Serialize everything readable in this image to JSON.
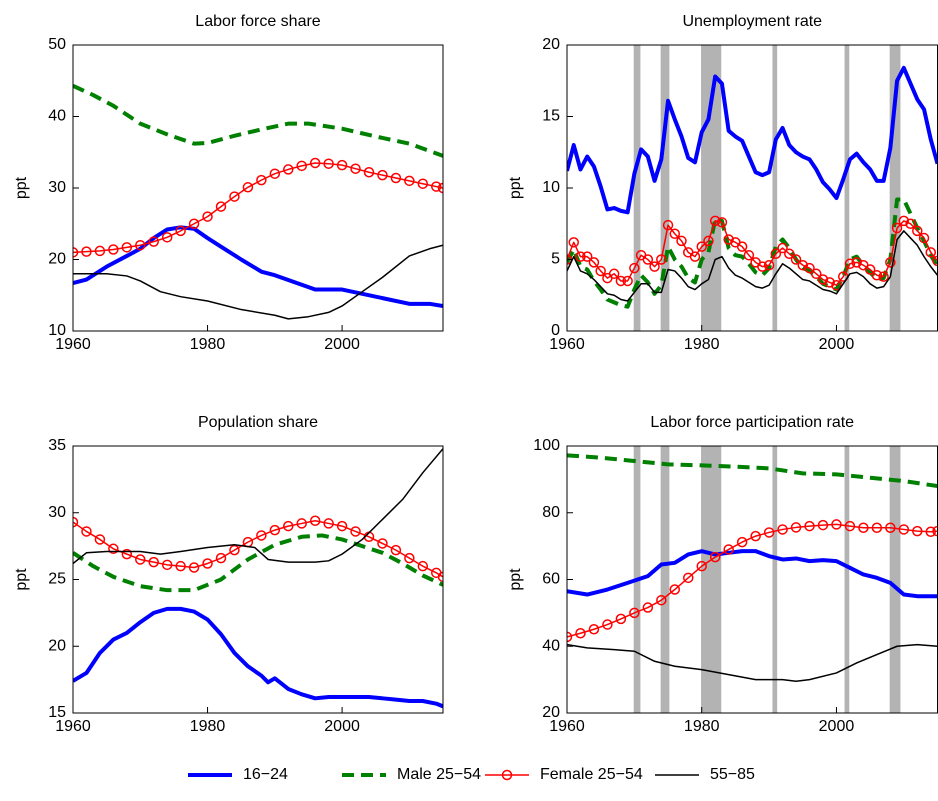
{
  "chart_data": [
    {
      "type": "line",
      "title": "Labor force share",
      "ylabel": "ppt",
      "xlim": [
        1960,
        2015
      ],
      "xticks": [
        1960,
        1980,
        2000
      ],
      "ylim": [
        10,
        50
      ],
      "yticks": [
        10,
        20,
        30,
        40,
        50
      ],
      "legend": "bottom",
      "series": [
        {
          "name": "16−24",
          "color": "#0000ff",
          "line_style": "solid",
          "line_width": 4,
          "x": [
            1960,
            1962,
            1965,
            1968,
            1970,
            1972,
            1974,
            1976,
            1978,
            1980,
            1982,
            1985,
            1988,
            1990,
            1993,
            1996,
            2000,
            2003,
            2006,
            2010,
            2013,
            2015
          ],
          "values": [
            16.7,
            17.2,
            19,
            20.5,
            21.5,
            23,
            24.2,
            24.5,
            24.3,
            23,
            21.8,
            20,
            18.3,
            17.8,
            16.8,
            15.8,
            15.8,
            15.2,
            14.6,
            13.8,
            13.8,
            13.5
          ]
        },
        {
          "name": "Male 25−54",
          "color": "#008000",
          "line_style": "dashed",
          "line_width": 4,
          "x": [
            1960,
            1963,
            1966,
            1970,
            1974,
            1978,
            1980,
            1984,
            1988,
            1992,
            1995,
            2000,
            2005,
            2010,
            2015
          ],
          "values": [
            44.3,
            43,
            41.5,
            39,
            37.5,
            36.2,
            36.3,
            37.3,
            38.2,
            39,
            39,
            38.3,
            37.2,
            36.2,
            34.5
          ]
        },
        {
          "name": "Female 25−54",
          "color": "#ff0000",
          "line_style": "solid",
          "line_width": 1.5,
          "marker": "circle",
          "x": [
            1960,
            1962,
            1964,
            1966,
            1968,
            1970,
            1972,
            1974,
            1976,
            1978,
            1980,
            1982,
            1984,
            1986,
            1988,
            1990,
            1992,
            1994,
            1996,
            1998,
            2000,
            2002,
            2004,
            2006,
            2008,
            2010,
            2012,
            2014,
            2015
          ],
          "values": [
            21,
            21.1,
            21.2,
            21.4,
            21.7,
            22,
            22.5,
            23.1,
            24,
            25,
            26,
            27.4,
            28.8,
            30.1,
            31.1,
            32,
            32.6,
            33.1,
            33.5,
            33.4,
            33.2,
            32.7,
            32.2,
            31.8,
            31.4,
            31,
            30.6,
            30.2,
            30
          ]
        },
        {
          "name": "55−85",
          "color": "#000000",
          "line_style": "solid",
          "line_width": 1.5,
          "x": [
            1960,
            1965,
            1968,
            1970,
            1973,
            1976,
            1980,
            1985,
            1990,
            1992,
            1995,
            1998,
            2000,
            2003,
            2006,
            2010,
            2013,
            2015
          ],
          "values": [
            18,
            18,
            17.7,
            17,
            15.5,
            14.8,
            14.2,
            13,
            12.2,
            11.7,
            12,
            12.6,
            13.5,
            15.5,
            17.5,
            20.5,
            21.5,
            22
          ]
        }
      ]
    },
    {
      "type": "line",
      "title": "Unemployment rate",
      "ylabel": "ppt",
      "xlim": [
        1960,
        2015
      ],
      "xticks": [
        1960,
        1980,
        2000
      ],
      "ylim": [
        0,
        20
      ],
      "yticks": [
        0,
        5,
        10,
        15,
        20
      ],
      "recessions": [
        [
          1969.9,
          1970.9
        ],
        [
          1973.9,
          1975.2
        ],
        [
          1979.9,
          1982.9
        ],
        [
          1990.5,
          1991.2
        ],
        [
          2001.2,
          2001.9
        ],
        [
          2007.9,
          2009.5
        ]
      ],
      "recession_color": "#b3b3b3",
      "x": [
        1960,
        1961,
        1962,
        1963,
        1964,
        1965,
        1966,
        1967,
        1968,
        1969,
        1970,
        1971,
        1972,
        1973,
        1974,
        1975,
        1976,
        1977,
        1978,
        1979,
        1980,
        1981,
        1982,
        1983,
        1984,
        1985,
        1986,
        1987,
        1988,
        1989,
        1990,
        1991,
        1992,
        1993,
        1994,
        1995,
        1996,
        1997,
        1998,
        1999,
        2000,
        2001,
        2002,
        2003,
        2004,
        2005,
        2006,
        2007,
        2008,
        2009,
        2010,
        2011,
        2012,
        2013,
        2014,
        2015
      ],
      "series": [
        {
          "color": "#0000ff",
          "line_style": "solid",
          "line_width": 4,
          "values": [
            11.2,
            13,
            11.3,
            12.2,
            11.5,
            10.1,
            8.5,
            8.6,
            8.4,
            8.3,
            11,
            12.7,
            12.2,
            10.5,
            12,
            16.1,
            14.8,
            13.6,
            12.1,
            11.8,
            13.9,
            14.8,
            17.8,
            17.3,
            14,
            13.6,
            13.3,
            12.2,
            11.1,
            10.9,
            11.1,
            13.4,
            14.2,
            13,
            12.5,
            12.2,
            12,
            11.3,
            10.4,
            9.9,
            9.3,
            10.6,
            12,
            12.4,
            11.8,
            11.3,
            10.5,
            10.5,
            12.8,
            17.5,
            18.4,
            17.3,
            16.2,
            15.5,
            13.4,
            11.7
          ]
        },
        {
          "color": "#008000",
          "line_style": "dashed",
          "line_width": 4,
          "values": [
            4.8,
            5.7,
            4.5,
            4.3,
            3.5,
            2.9,
            2.2,
            2,
            1.8,
            1.7,
            2.9,
            3.9,
            3.4,
            2.6,
            3.2,
            5.9,
            5,
            4.5,
            3.7,
            3.4,
            5,
            5.5,
            7.8,
            7.7,
            5.8,
            5.3,
            5.2,
            4.7,
            4.1,
            3.9,
            4.4,
            5.9,
            6.4,
            5.8,
            5,
            4.4,
            4.2,
            3.8,
            3.3,
            3.1,
            2.9,
            3.8,
            5,
            5.2,
            4.6,
            4.1,
            3.6,
            3.7,
            5,
            9.2,
            9.2,
            8.2,
            7.2,
            6.3,
            5.3,
            4.5
          ]
        },
        {
          "color": "#ff0000",
          "line_style": "solid",
          "line_width": 1.5,
          "marker": "circle",
          "values": [
            5,
            6.2,
            5.2,
            5.2,
            4.8,
            4.2,
            3.7,
            4,
            3.5,
            3.5,
            4.4,
            5.3,
            5,
            4.5,
            5,
            7.4,
            6.8,
            6.3,
            5.5,
            5.2,
            5.9,
            6.3,
            7.7,
            7.6,
            6.4,
            6.2,
            5.9,
            5.3,
            4.8,
            4.5,
            4.6,
            5.4,
            5.8,
            5.4,
            5,
            4.6,
            4.4,
            4,
            3.6,
            3.4,
            3.2,
            3.8,
            4.7,
            4.8,
            4.6,
            4.3,
            3.9,
            3.8,
            4.8,
            7.2,
            7.7,
            7.5,
            7,
            6.5,
            5.5,
            4.9
          ]
        },
        {
          "color": "#000000",
          "line_style": "solid",
          "line_width": 1.5,
          "values": [
            4.2,
            5.2,
            4.2,
            4,
            3.6,
            3.1,
            2.6,
            2.5,
            2.2,
            2.1,
            2.7,
            3.3,
            3.3,
            2.7,
            2.7,
            4.3,
            4.2,
            3.7,
            3.1,
            2.9,
            3.3,
            3.6,
            5,
            5.2,
            4.4,
            3.9,
            3.7,
            3.4,
            3.1,
            3,
            3.2,
            4,
            4.7,
            4.4,
            4,
            3.6,
            3.5,
            3.2,
            2.9,
            2.8,
            2.6,
            3.3,
            4,
            4.1,
            3.8,
            3.3,
            3,
            3.1,
            3.8,
            6.4,
            7,
            6.5,
            6,
            5.2,
            4.5,
            3.9
          ]
        }
      ]
    },
    {
      "type": "line",
      "title": "Population share",
      "ylabel": "ppt",
      "xlim": [
        1960,
        2015
      ],
      "xticks": [
        1960,
        1980,
        2000
      ],
      "ylim": [
        15,
        35
      ],
      "yticks": [
        15,
        20,
        25,
        30,
        35
      ],
      "series": [
        {
          "color": "#0000ff",
          "line_style": "solid",
          "line_width": 4,
          "x": [
            1960,
            1962,
            1964,
            1966,
            1968,
            1970,
            1972,
            1974,
            1976,
            1978,
            1980,
            1982,
            1984,
            1986,
            1988,
            1989,
            1990,
            1992,
            1994,
            1996,
            1998,
            2000,
            2002,
            2004,
            2006,
            2008,
            2010,
            2012,
            2014,
            2015
          ],
          "values": [
            17.4,
            18,
            19.5,
            20.5,
            21,
            21.8,
            22.5,
            22.8,
            22.8,
            22.6,
            22,
            20.9,
            19.5,
            18.5,
            17.8,
            17.3,
            17.6,
            16.8,
            16.4,
            16.1,
            16.2,
            16.2,
            16.2,
            16.2,
            16.1,
            16,
            15.9,
            15.9,
            15.7,
            15.5
          ]
        },
        {
          "color": "#008000",
          "line_style": "dashed",
          "line_width": 4,
          "x": [
            1960,
            1963,
            1966,
            1970,
            1974,
            1978,
            1982,
            1986,
            1990,
            1994,
            1997,
            2000,
            2003,
            2006,
            2009,
            2012,
            2015
          ],
          "values": [
            27,
            26,
            25.2,
            24.5,
            24.2,
            24.2,
            25,
            26.5,
            27.6,
            28.2,
            28.3,
            28,
            27.5,
            27,
            26.2,
            25.3,
            24.6
          ]
        },
        {
          "color": "#ff0000",
          "line_style": "solid",
          "line_width": 1.5,
          "marker": "circle",
          "x": [
            1960,
            1962,
            1964,
            1966,
            1968,
            1970,
            1972,
            1974,
            1976,
            1978,
            1980,
            1982,
            1984,
            1986,
            1988,
            1990,
            1992,
            1994,
            1996,
            1998,
            2000,
            2002,
            2004,
            2006,
            2008,
            2010,
            2012,
            2014,
            2015
          ],
          "values": [
            29.3,
            28.6,
            28,
            27.3,
            26.9,
            26.5,
            26.3,
            26.1,
            26,
            25.9,
            26.2,
            26.6,
            27.2,
            27.8,
            28.3,
            28.7,
            29,
            29.2,
            29.4,
            29.2,
            29,
            28.6,
            28.2,
            27.7,
            27.2,
            26.6,
            26,
            25.5,
            25.2
          ]
        },
        {
          "color": "#000000",
          "line_style": "solid",
          "line_width": 1.5,
          "x": [
            1960,
            1962,
            1965,
            1970,
            1973,
            1976,
            1980,
            1984,
            1987,
            1989,
            1992,
            1996,
            1998,
            2000,
            2003,
            2006,
            2009,
            2012,
            2015
          ],
          "values": [
            26.2,
            27,
            27.1,
            27.1,
            26.9,
            27.1,
            27.4,
            27.6,
            27.4,
            26.5,
            26.3,
            26.3,
            26.4,
            26.9,
            28,
            29.5,
            31,
            33,
            34.8
          ]
        }
      ]
    },
    {
      "type": "line",
      "title": "Labor force participation rate",
      "ylabel": "ppt",
      "xlim": [
        1960,
        2015
      ],
      "xticks": [
        1960,
        1980,
        2000
      ],
      "ylim": [
        20,
        100
      ],
      "yticks": [
        20,
        40,
        60,
        80,
        100
      ],
      "recessions": [
        [
          1969.9,
          1970.9
        ],
        [
          1973.9,
          1975.2
        ],
        [
          1979.9,
          1982.9
        ],
        [
          1990.5,
          1991.2
        ],
        [
          2001.2,
          2001.9
        ],
        [
          2007.9,
          2009.5
        ]
      ],
      "recession_color": "#b3b3b3",
      "series": [
        {
          "color": "#0000ff",
          "line_style": "solid",
          "line_width": 4,
          "x": [
            1960,
            1963,
            1966,
            1969,
            1972,
            1974,
            1976,
            1978,
            1980,
            1982,
            1984,
            1986,
            1988,
            1990,
            1992,
            1994,
            1996,
            1998,
            2000,
            2002,
            2004,
            2006,
            2008,
            2010,
            2012,
            2015
          ],
          "values": [
            56.5,
            55.5,
            57,
            59,
            61,
            64.5,
            65,
            67.5,
            68.5,
            67.5,
            68,
            68.5,
            68.5,
            67,
            66,
            66.3,
            65.5,
            65.8,
            65.5,
            63.5,
            61.5,
            60.5,
            59,
            55.5,
            55,
            55
          ]
        },
        {
          "color": "#008000",
          "line_style": "dashed",
          "line_width": 4,
          "x": [
            1960,
            1965,
            1970,
            1975,
            1980,
            1985,
            1990,
            1995,
            2000,
            2005,
            2010,
            2015
          ],
          "values": [
            97.2,
            96.5,
            95.5,
            94.5,
            94.2,
            93.8,
            93.3,
            91.8,
            91.5,
            90.5,
            89.5,
            88
          ]
        },
        {
          "color": "#ff0000",
          "line_style": "solid",
          "line_width": 1.5,
          "marker": "circle",
          "x": [
            1960,
            1962,
            1964,
            1966,
            1968,
            1970,
            1972,
            1974,
            1976,
            1978,
            1980,
            1982,
            1984,
            1986,
            1988,
            1990,
            1992,
            1994,
            1996,
            1998,
            2000,
            2002,
            2004,
            2006,
            2008,
            2010,
            2012,
            2014,
            2015
          ],
          "values": [
            42.8,
            43.9,
            45.1,
            46.5,
            48.2,
            50,
            51.6,
            53.8,
            57,
            60.5,
            64,
            66.7,
            69,
            71.2,
            73,
            74.1,
            75,
            75.6,
            76,
            76.3,
            76.5,
            76,
            75.5,
            75.5,
            75.5,
            75,
            74.5,
            74.3,
            74.5
          ]
        },
        {
          "color": "#000000",
          "line_style": "solid",
          "line_width": 1.5,
          "x": [
            1960,
            1963,
            1967,
            1970,
            1973,
            1976,
            1980,
            1984,
            1988,
            1992,
            1994,
            1996,
            2000,
            2003,
            2006,
            2009,
            2012,
            2015
          ],
          "values": [
            40.5,
            39.5,
            39,
            38.5,
            35.5,
            34,
            33,
            31.5,
            30,
            30,
            29.5,
            30,
            32,
            35,
            37.5,
            40,
            40.5,
            40
          ]
        }
      ]
    }
  ]
}
